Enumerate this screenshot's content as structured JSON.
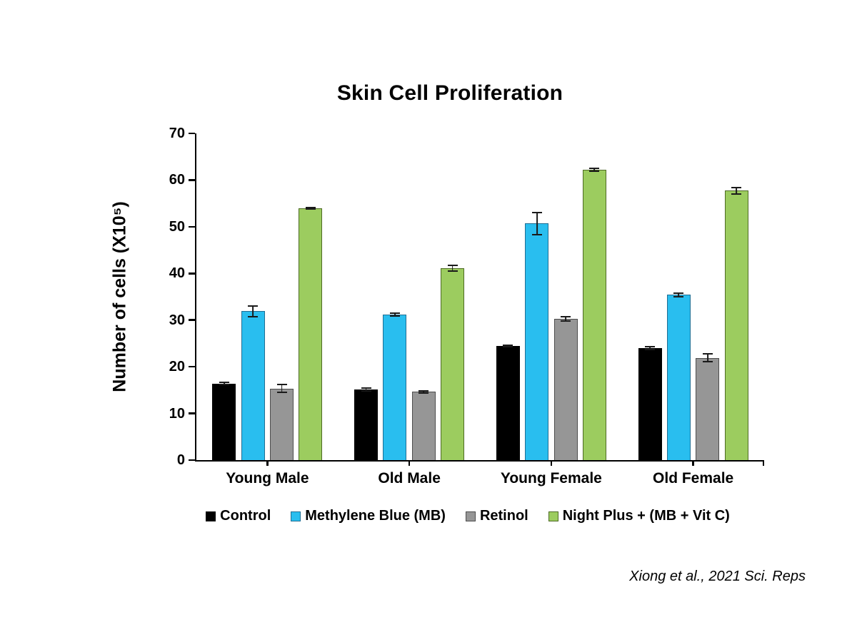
{
  "title": "Skin Cell Proliferation",
  "citation": "Xiong et al., 2021 Sci. Reps",
  "chart_data": {
    "type": "bar",
    "title": "Skin Cell Proliferation",
    "xlabel": "",
    "ylabel": "Number of cells (X10⁵)",
    "ylim": [
      0,
      70
    ],
    "ytick_step": 10,
    "yticks": [
      0,
      10,
      20,
      30,
      40,
      50,
      60,
      70
    ],
    "grid": false,
    "legend_position": "bottom",
    "error_bars": true,
    "categories": [
      "Young Male",
      "Old Male",
      "Young Female",
      "Old Female"
    ],
    "series": [
      {
        "name": "Control",
        "color": "#000000",
        "border_color": "#000000",
        "values": [
          16.4,
          15.1,
          24.5,
          24.0
        ],
        "errors": [
          0.4,
          0.5,
          0.3,
          0.4
        ]
      },
      {
        "name": "Methylene Blue (MB)",
        "color": "#29BEEF",
        "border_color": "#1F6E93",
        "values": [
          31.9,
          31.2,
          50.7,
          35.4
        ],
        "errors": [
          1.3,
          0.5,
          2.5,
          0.5
        ]
      },
      {
        "name": "Retinol",
        "color": "#969696",
        "border_color": "#4D4D4D",
        "values": [
          15.3,
          14.6,
          30.2,
          21.9
        ],
        "errors": [
          1.0,
          0.4,
          0.6,
          1.0
        ]
      },
      {
        "name": "Night Plus + (MB + Vit C)",
        "color": "#9CCC5F",
        "border_color": "#4E6B25",
        "values": [
          54.0,
          41.1,
          62.2,
          57.7
        ],
        "errors": [
          0.3,
          0.8,
          0.5,
          0.8
        ]
      }
    ]
  }
}
